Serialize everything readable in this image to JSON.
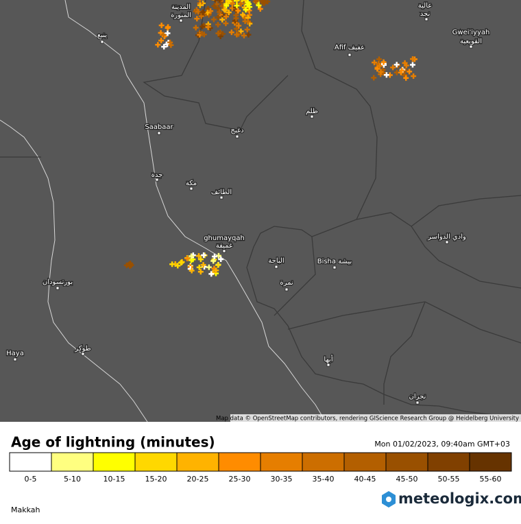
{
  "map": {
    "places": [
      "المدينة",
      "المنورة",
      "ينبع",
      "عالية",
      "نجد",
      "Gwei'iyyah",
      "القويعية",
      "Afif عفيف",
      "ظلم",
      "Saabaar",
      "دغبج",
      "جدة",
      "مكة",
      "الطائف",
      "ghumayqah",
      "غميقة",
      "وادي الدواسر",
      "الباحة",
      "Bisha بيشة",
      "نمرة",
      "بورتسودان",
      "Haya",
      "طوكر",
      "أبها",
      "نجران"
    ],
    "attribution": "Map data © OpenStreetMap contributors, rendering GIScience Research Group @ Heidelberg University"
  },
  "legend": {
    "title": "Age of lightning (minutes)",
    "timestamp": "Mon 01/02/2023, 09:40am GMT+03",
    "labels": [
      "0-5",
      "5-10",
      "10-15",
      "15-20",
      "20-25",
      "25-30",
      "30-35",
      "35-40",
      "40-45",
      "45-50",
      "50-55",
      "55-60"
    ],
    "colors": [
      "#ffffff",
      "#ffff80",
      "#ffff00",
      "#ffd800",
      "#ffb300",
      "#ff8c00",
      "#e67e00",
      "#cc6e00",
      "#b35f00",
      "#995000",
      "#804000",
      "#663300"
    ]
  },
  "footer": {
    "region": "Makkah",
    "brand": "meteologix.com"
  }
}
